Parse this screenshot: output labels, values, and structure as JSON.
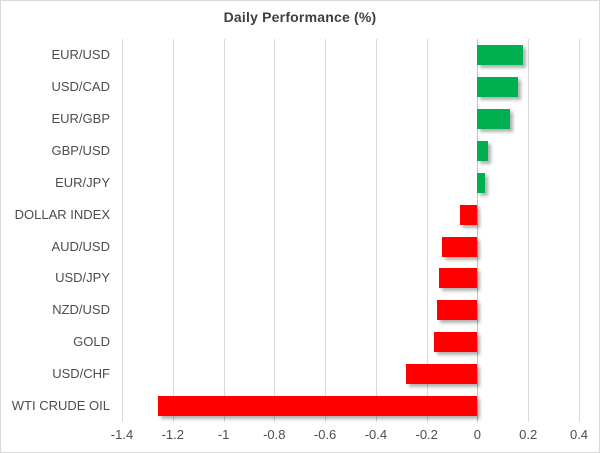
{
  "chart_data": {
    "type": "bar",
    "orientation": "horizontal",
    "title": "Daily Performance (%)",
    "categories": [
      "EUR/USD",
      "USD/CAD",
      "EUR/GBP",
      "GBP/USD",
      "EUR/JPY",
      "DOLLAR INDEX",
      "AUD/USD",
      "USD/JPY",
      "NZD/USD",
      "GOLD",
      "USD/CHF",
      "WTI CRUDE OIL"
    ],
    "values": [
      0.18,
      0.16,
      0.13,
      0.04,
      0.03,
      -0.07,
      -0.14,
      -0.15,
      -0.16,
      -0.17,
      -0.28,
      -1.26
    ],
    "xlim": [
      -1.4,
      0.4
    ],
    "xticks": [
      -1.4,
      -1.2,
      -1,
      -0.8,
      -0.6,
      -0.4,
      -0.2,
      0,
      0.2,
      0.4
    ],
    "tick_labels": [
      "-1.4",
      "-1.2",
      "-1",
      "-0.8",
      "-0.6",
      "-0.4",
      "-0.2",
      "0",
      "0.2",
      "0.4"
    ],
    "xlabel": "",
    "ylabel": "",
    "grid": true,
    "legend": "none",
    "positive_color": "#00B050",
    "negative_color": "#FF0000",
    "gridline_color": "#D9D9D9",
    "text_color": "#4D4D4D",
    "title_color": "#3F3F3F",
    "background_color": "#FFFFFF"
  }
}
